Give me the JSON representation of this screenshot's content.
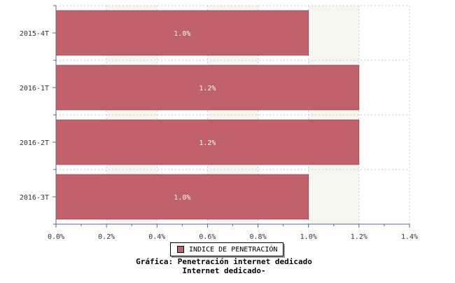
{
  "chart_data": {
    "type": "bar",
    "orientation": "horizontal",
    "categories": [
      "2015-4T",
      "2016-1T",
      "2016-2T",
      "2016-3T"
    ],
    "series": [
      {
        "name": "INDICE DE PENETRACIÓN",
        "values": [
          1.0,
          1.2,
          1.2,
          1.0
        ],
        "labels": [
          "1.0%",
          "1.2%",
          "1.2%",
          "1.0%"
        ],
        "color": "#c0616b"
      }
    ],
    "xlim": [
      0,
      1.4
    ],
    "xticks": [
      0,
      0.2,
      0.4,
      0.6,
      0.8,
      1.0,
      1.2,
      1.4
    ],
    "xtick_labels": [
      "0.0%",
      "0.2%",
      "0.4%",
      "0.6%",
      "0.8%",
      "1.0%",
      "1.2%",
      "1.4%"
    ],
    "grid": true,
    "legend_position": "bottom"
  },
  "caption": {
    "line1": "Gráfica: Penetración internet dedicado",
    "line2": "Internet dedicado-"
  },
  "colors": {
    "bar": "#c0616b",
    "band": "#f7f7f2",
    "axis": "#5a6a8a"
  }
}
